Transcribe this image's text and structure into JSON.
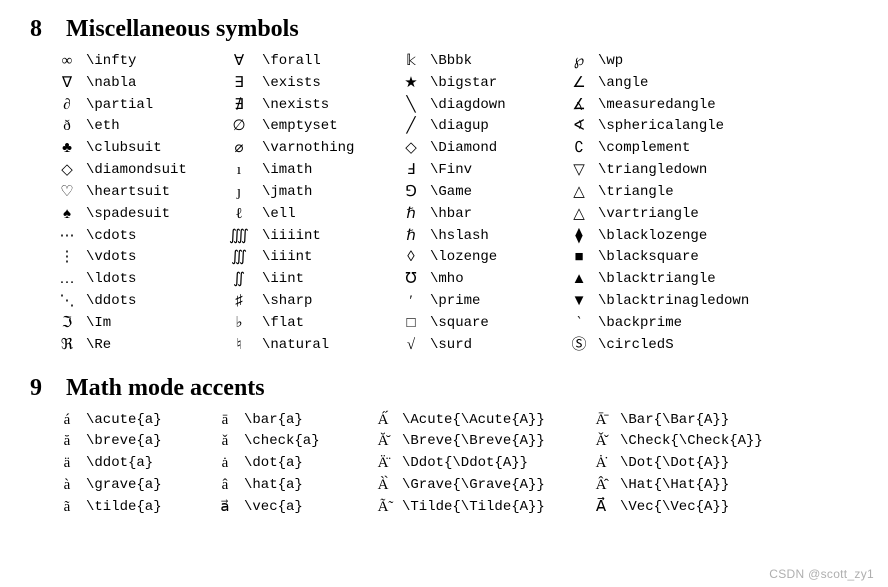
{
  "section8": {
    "number": "8",
    "title": "Miscellaneous symbols",
    "rows": [
      [
        "∞",
        "\\infty",
        "∀",
        "\\forall",
        "𝕜",
        "\\Bbbk",
        "℘",
        "\\wp"
      ],
      [
        "∇",
        "\\nabla",
        "∃",
        "\\exists",
        "★",
        "\\bigstar",
        "∠",
        "\\angle"
      ],
      [
        "∂",
        "\\partial",
        "∄",
        "\\nexists",
        "╲",
        "\\diagdown",
        "∡",
        "\\measuredangle"
      ],
      [
        "ð",
        "\\eth",
        "∅",
        "\\emptyset",
        "╱",
        "\\diagup",
        "∢",
        "\\sphericalangle"
      ],
      [
        "♣",
        "\\clubsuit",
        "⌀",
        "\\varnothing",
        "◇",
        "\\Diamond",
        "∁",
        "\\complement"
      ],
      [
        "◇",
        "\\diamondsuit",
        "ı",
        "\\imath",
        "Ⅎ",
        "\\Finv",
        "▽",
        "\\triangledown"
      ],
      [
        "♡",
        "\\heartsuit",
        "ȷ",
        "\\jmath",
        "⅁",
        "\\Game",
        "△",
        "\\triangle"
      ],
      [
        "♠",
        "\\spadesuit",
        "ℓ",
        "\\ell",
        "ℏ",
        "\\hbar",
        "△",
        "\\vartriangle"
      ],
      [
        "⋯",
        "\\cdots",
        "⨌",
        "\\iiiint",
        "ℏ",
        "\\hslash",
        "⧫",
        "\\blacklozenge"
      ],
      [
        "⋮",
        "\\vdots",
        "∭",
        "\\iiint",
        "◊",
        "\\lozenge",
        "■",
        "\\blacksquare"
      ],
      [
        "…",
        "\\ldots",
        "∬",
        "\\iint",
        "℧",
        "\\mho",
        "▲",
        "\\blacktriangle"
      ],
      [
        "⋱",
        "\\ddots",
        "♯",
        "\\sharp",
        "′",
        "\\prime",
        "▼",
        "\\blacktrinagledown"
      ],
      [
        "ℑ",
        "\\Im",
        "♭",
        "\\flat",
        "□",
        "\\square",
        "‵",
        "\\backprime"
      ],
      [
        "ℜ",
        "\\Re",
        "♮",
        "\\natural",
        "√",
        "\\surd",
        "Ⓢ",
        "\\circledS"
      ]
    ]
  },
  "section9": {
    "number": "9",
    "title": "Math mode accents",
    "rows": [
      [
        "á",
        "\\acute{a}",
        "ā",
        "\\bar{a}",
        "Á́",
        "\\Acute{\\Acute{A}}",
        "Ā̄",
        "\\Bar{\\Bar{A}}"
      ],
      [
        "ă",
        "\\breve{a}",
        "ǎ",
        "\\check{a}",
        "Ă̆",
        "\\Breve{\\Breve{A}}",
        "Ǎ̌",
        "\\Check{\\Check{A}}"
      ],
      [
        "ä",
        "\\ddot{a}",
        "ȧ",
        "\\dot{a}",
        "Ä̈",
        "\\Ddot{\\Ddot{A}}",
        "Ȧ̇",
        "\\Dot{\\Dot{A}}"
      ],
      [
        "à",
        "\\grave{a}",
        "â",
        "\\hat{a}",
        "À̀",
        "\\Grave{\\Grave{A}}",
        "Â̂",
        "\\Hat{\\Hat{A}}"
      ],
      [
        "ã",
        "\\tilde{a}",
        "a⃗",
        "\\vec{a}",
        "Ã̃",
        "\\Tilde{\\Tilde{A}}",
        "A⃗⃗",
        "\\Vec{\\Vec{A}}"
      ]
    ]
  },
  "watermark": "CSDN @scott_zy1"
}
